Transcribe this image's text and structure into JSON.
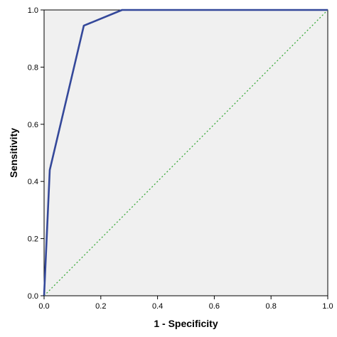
{
  "chart_data": {
    "type": "line",
    "xlabel": "1 - Specificity",
    "ylabel": "Sensitivity",
    "xlim": [
      0,
      1
    ],
    "ylim": [
      0,
      1
    ],
    "x_ticks": [
      "0.0",
      "0.2",
      "0.4",
      "0.6",
      "0.8",
      "1.0"
    ],
    "y_ticks": [
      "0.0",
      "0.2",
      "0.4",
      "0.6",
      "0.8",
      "1.0"
    ],
    "grid": false,
    "legend": "none",
    "plot_background": "#f0f0f0",
    "series": [
      {
        "color": "#34489a",
        "style": "solid",
        "points": [
          {
            "x": 0.0,
            "y": 0.0
          },
          {
            "x": 0.02,
            "y": 0.44
          },
          {
            "x": 0.14,
            "y": 0.945
          },
          {
            "x": 0.275,
            "y": 1.0
          },
          {
            "x": 1.0,
            "y": 1.0
          }
        ]
      },
      {
        "color": "#3caa3c",
        "style": "dotted",
        "points": [
          {
            "x": 0.0,
            "y": 0.0
          },
          {
            "x": 1.0,
            "y": 1.0
          }
        ]
      }
    ]
  }
}
